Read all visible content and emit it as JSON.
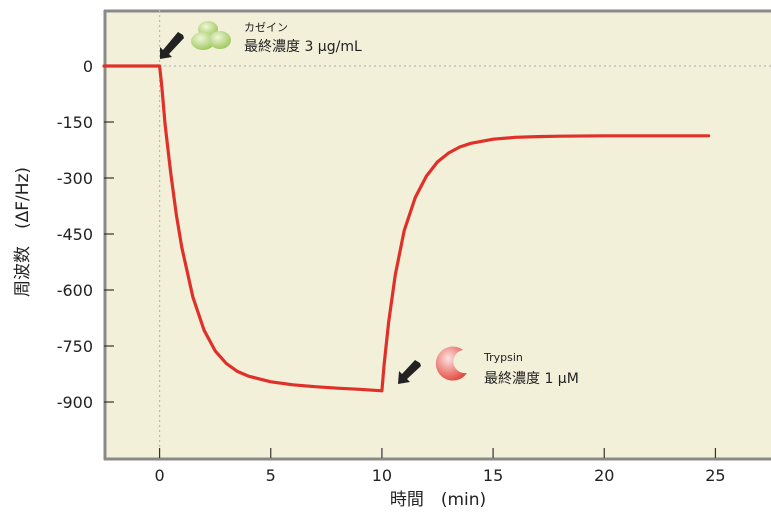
{
  "chart_data": {
    "type": "line",
    "xlabel": "時間　(min)",
    "ylabel": "周波数　(ΔF/Hz)",
    "xlim": [
      -2.5,
      27.5
    ],
    "ylim": [
      -1050,
      150
    ],
    "x_ticks": [
      0,
      5,
      10,
      15,
      20,
      25
    ],
    "x_tick_labels": [
      "0",
      "5",
      "10",
      "15",
      "20",
      "25"
    ],
    "y_ticks": [
      0,
      -150,
      -300,
      -450,
      -600,
      -750,
      -900
    ],
    "y_tick_labels": [
      "0",
      "-150",
      "-300",
      "-450",
      "-600",
      "-750",
      "-900"
    ],
    "grid": false,
    "reference_lines": {
      "x": 0,
      "y": 0,
      "style": "dotted"
    },
    "colors": {
      "plot_bg": "#f2f0d8",
      "frame": "#8a8a8a",
      "line": "#e0302a",
      "arrow": "#222222",
      "casein": "#a9cf6a",
      "trypsin": "#ea5a50"
    },
    "series": [
      {
        "x": [
          -2.5,
          0,
          0.1,
          0.25,
          0.5,
          0.75,
          1,
          1.5,
          2,
          2.5,
          3,
          3.5,
          4,
          5,
          6,
          7,
          8,
          9,
          10,
          10.1,
          10.3,
          10.6,
          11,
          11.5,
          12,
          12.5,
          13,
          13.5,
          14,
          15,
          16,
          17,
          18,
          20,
          22,
          24,
          24.7
        ],
        "y": [
          0,
          0,
          -54,
          -157,
          -286,
          -398,
          -486,
          -619,
          -708,
          -763,
          -797,
          -818,
          -831,
          -846,
          -854,
          -859,
          -863,
          -866,
          -870,
          -800,
          -687,
          -559,
          -441,
          -352,
          -295,
          -257,
          -233,
          -217,
          -207,
          -196,
          -191,
          -189,
          -188,
          -187,
          -187,
          -187,
          -187
        ]
      }
    ],
    "annotations": [
      {
        "name": "カゼイン",
        "concentration": "最終濃度 3 μg/mL",
        "at_x": 0,
        "icon": "casein-icon"
      },
      {
        "name": "Trypsin",
        "concentration": "最終濃度 1 μM",
        "at_x": 10,
        "icon": "trypsin-icon"
      }
    ]
  }
}
